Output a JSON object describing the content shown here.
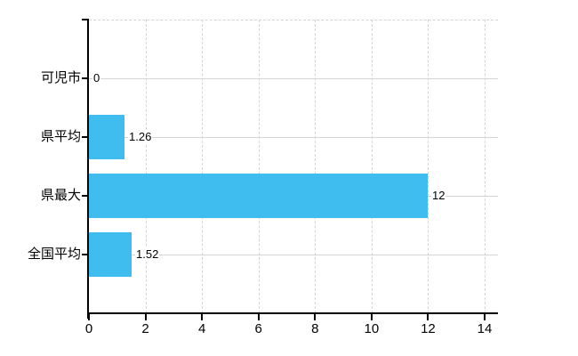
{
  "chart_data": {
    "type": "bar",
    "orientation": "horizontal",
    "title": "",
    "categories": [
      "可児市",
      "県平均",
      "県最大",
      "全国平均"
    ],
    "values": [
      0,
      1.26,
      12,
      1.52
    ],
    "value_labels": [
      "0",
      "1.26",
      "12",
      "1.52"
    ],
    "xlim": [
      0,
      14
    ],
    "xticks": [
      0,
      2,
      4,
      6,
      8,
      10,
      12,
      14
    ],
    "xtick_labels": [
      "0",
      "2",
      "4",
      "6",
      "8",
      "10",
      "12",
      "14"
    ],
    "xlabel": "",
    "ylabel": "",
    "grid": true,
    "grid_vertical_style": "dashed",
    "grid_horizontal_style": "solid",
    "legend": "none",
    "bar_color": "#3FBDEE",
    "grid_color": "#D4D4D4",
    "axis_color": "#000000",
    "label_color": "#000000",
    "background_color": "#FFFFFF"
  }
}
